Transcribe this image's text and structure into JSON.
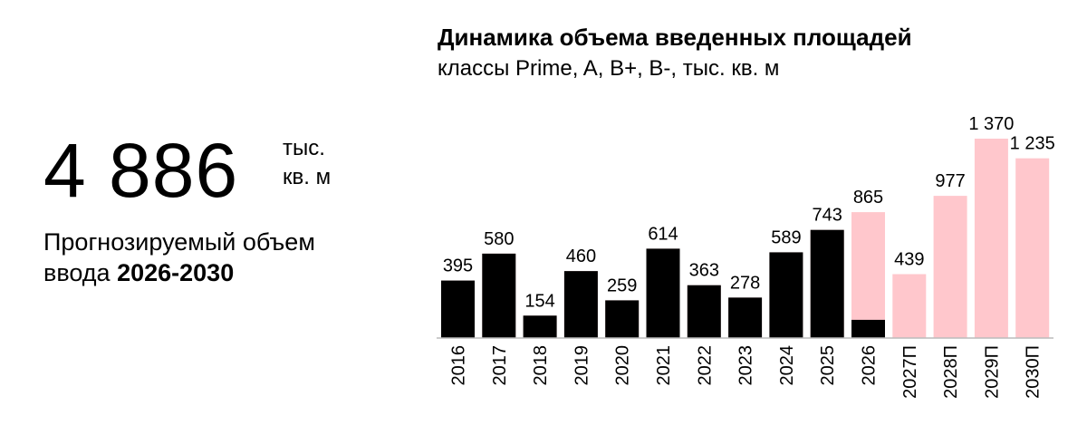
{
  "kpi": {
    "value": "4 886",
    "unit_line1": "тыс.",
    "unit_line2": "кв. м",
    "desc_line1": "Прогнозируемый объем",
    "desc_line2_prefix": "ввода ",
    "desc_line2_bold": "2026-2030"
  },
  "chart_data": {
    "type": "bar",
    "title": "Динамика объема введенных площадей",
    "subtitle": "классы Prime, A, B+, B-, тыс. кв. м",
    "categories": [
      "2016",
      "2017",
      "2018",
      "2019",
      "2020",
      "2021",
      "2022",
      "2023",
      "2024",
      "2025",
      "2026",
      "2027П",
      "2028П",
      "2029П",
      "2030П"
    ],
    "values": [
      395,
      580,
      154,
      460,
      259,
      614,
      363,
      278,
      589,
      743,
      865,
      439,
      977,
      1370,
      1235
    ],
    "labels": [
      "395",
      "580",
      "154",
      "460",
      "259",
      "614",
      "363",
      "278",
      "589",
      "743",
      "865",
      "439",
      "977",
      "1 370",
      "1 235"
    ],
    "actual_part": [
      395,
      580,
      154,
      460,
      259,
      614,
      363,
      278,
      589,
      743,
      125,
      0,
      0,
      0,
      0
    ],
    "colors": {
      "actual": "#000000",
      "forecast": "#ffc7cc"
    },
    "ylim": [
      0,
      1370
    ]
  }
}
